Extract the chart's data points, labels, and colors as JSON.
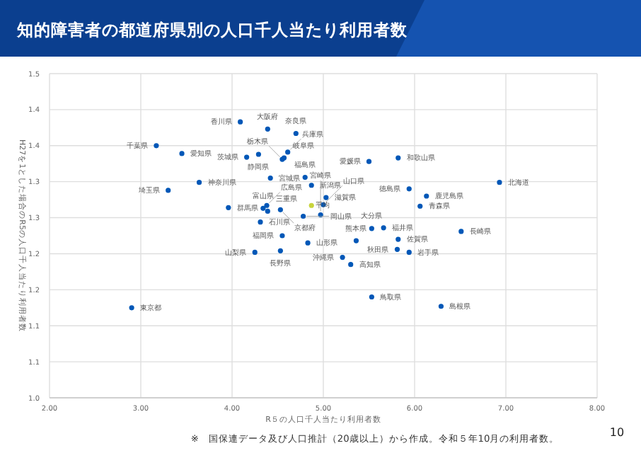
{
  "chart_data": {
    "type": "scatter",
    "title": "知的障害者の都道府県別の人口千人当たり利用者数",
    "xlabel": "R５の人口千人当たり利用者数",
    "ylabel": "H27を1とした場合のR5の人口千人当たり利用者数",
    "xlim": [
      2,
      8
    ],
    "xticks": [
      {
        "value": 2,
        "label": "2.00"
      },
      {
        "value": 3,
        "label": "3.00"
      },
      {
        "value": 4,
        "label": "4.00"
      },
      {
        "value": 5,
        "label": "5.00"
      },
      {
        "value": 6,
        "label": "6.00"
      },
      {
        "value": 7,
        "label": "7.00"
      },
      {
        "value": 8,
        "label": "8.00"
      }
    ],
    "ylim": [
      1.0,
      1.45
    ],
    "yticks": [
      {
        "value": 1.0,
        "label": "1.0"
      },
      {
        "value": 1.05,
        "label": "1.1"
      },
      {
        "value": 1.1,
        "label": "1.1"
      },
      {
        "value": 1.15,
        "label": "1.2"
      },
      {
        "value": 1.2,
        "label": "1.2"
      },
      {
        "value": 1.25,
        "label": "1.3"
      },
      {
        "value": 1.3,
        "label": "1.3"
      },
      {
        "value": 1.35,
        "label": "1.4"
      },
      {
        "value": 1.4,
        "label": "1.4"
      },
      {
        "value": 1.45,
        "label": "1.5"
      }
    ],
    "grid": true,
    "marker": "circle",
    "x": [
      6.93,
      6.06,
      5.94,
      4.42,
      5.81,
      4.83,
      4.8,
      4.16,
      4.55,
      3.96,
      3.3,
      3.17,
      2.9,
      3.64,
      4.87,
      4.34,
      4.31,
      5.66,
      4.25,
      4.53,
      4.57,
      4.29,
      3.45,
      4.39,
      5.03,
      4.53,
      4.39,
      4.61,
      4.7,
      5.82,
      5.53,
      6.29,
      4.78,
      4.38,
      5.0,
      5.94,
      4.09,
      5.5,
      5.3,
      4.55,
      5.82,
      6.51,
      5.36,
      5.53,
      4.97,
      6.13,
      5.21,
      4.87
    ],
    "values": [
      1.299,
      1.266,
      1.202,
      1.305,
      1.206,
      1.215,
      1.306,
      1.334,
      1.331,
      1.264,
      1.288,
      1.35,
      1.125,
      1.299,
      1.295,
      1.263,
      1.244,
      1.236,
      1.202,
      1.204,
      1.333,
      1.338,
      1.339,
      1.259,
      1.278,
      1.261,
      1.373,
      1.341,
      1.367,
      1.333,
      1.14,
      1.127,
      1.252,
      1.267,
      1.268,
      1.29,
      1.383,
      1.328,
      1.185,
      1.225,
      1.22,
      1.231,
      1.218,
      1.235,
      1.254,
      1.28,
      1.195,
      1.267
    ],
    "colors": [
      "#0057b7",
      "#0057b7",
      "#0057b7",
      "#0057b7",
      "#0057b7",
      "#0057b7",
      "#0057b7",
      "#0057b7",
      "#0057b7",
      "#0057b7",
      "#0057b7",
      "#0057b7",
      "#0057b7",
      "#0057b7",
      "#0057b7",
      "#0057b7",
      "#0057b7",
      "#0057b7",
      "#0057b7",
      "#0057b7",
      "#0057b7",
      "#0057b7",
      "#0057b7",
      "#0057b7",
      "#0057b7",
      "#0057b7",
      "#0057b7",
      "#0057b7",
      "#0057b7",
      "#0057b7",
      "#0057b7",
      "#0057b7",
      "#0057b7",
      "#0057b7",
      "#0057b7",
      "#0057b7",
      "#0057b7",
      "#0057b7",
      "#0057b7",
      "#0057b7",
      "#0057b7",
      "#0057b7",
      "#0057b7",
      "#0057b7",
      "#0057b7",
      "#0057b7",
      "#0057b7",
      "#c8d43c"
    ],
    "annotations": [
      {
        "text": "北海道",
        "x": 6.93,
        "y": 1.299
      },
      {
        "text": "青森県",
        "x": 6.06,
        "y": 1.266
      },
      {
        "text": "岩手県",
        "x": 5.94,
        "y": 1.202
      },
      {
        "text": "宮城県",
        "x": 4.42,
        "y": 1.305
      },
      {
        "text": "秋田県",
        "x": 5.81,
        "y": 1.206
      },
      {
        "text": "山形県",
        "x": 4.83,
        "y": 1.215
      },
      {
        "text": "福島県",
        "x": 4.8,
        "y": 1.306
      },
      {
        "text": "茨城県",
        "x": 4.16,
        "y": 1.334
      },
      {
        "text": "栃木県",
        "x": 4.55,
        "y": 1.331
      },
      {
        "text": "群馬県",
        "x": 3.96,
        "y": 1.264
      },
      {
        "text": "埼玉県",
        "x": 3.3,
        "y": 1.288
      },
      {
        "text": "千葉県",
        "x": 3.17,
        "y": 1.35
      },
      {
        "text": "東京都",
        "x": 2.9,
        "y": 1.125
      },
      {
        "text": "神奈川県",
        "x": 3.64,
        "y": 1.299
      },
      {
        "text": "新潟県",
        "x": 4.87,
        "y": 1.295
      },
      {
        "text": "富山県",
        "x": 4.34,
        "y": 1.263
      },
      {
        "text": "石川県",
        "x": 4.31,
        "y": 1.244
      },
      {
        "text": "福井県",
        "x": 5.66,
        "y": 1.236
      },
      {
        "text": "山梨県",
        "x": 4.25,
        "y": 1.202
      },
      {
        "text": "長野県",
        "x": 4.53,
        "y": 1.204
      },
      {
        "text": "岐阜県",
        "x": 4.57,
        "y": 1.333
      },
      {
        "text": "静岡県",
        "x": 4.29,
        "y": 1.338
      },
      {
        "text": "愛知県",
        "x": 3.45,
        "y": 1.339
      },
      {
        "text": "三重県",
        "x": 4.39,
        "y": 1.259
      },
      {
        "text": "滋賀県",
        "x": 5.03,
        "y": 1.278
      },
      {
        "text": "京都府",
        "x": 4.53,
        "y": 1.261
      },
      {
        "text": "大阪府",
        "x": 4.39,
        "y": 1.373
      },
      {
        "text": "兵庫県",
        "x": 4.61,
        "y": 1.341
      },
      {
        "text": "奈良県",
        "x": 4.7,
        "y": 1.367
      },
      {
        "text": "和歌山県",
        "x": 5.82,
        "y": 1.333
      },
      {
        "text": "鳥取県",
        "x": 5.53,
        "y": 1.14
      },
      {
        "text": "島根県",
        "x": 6.29,
        "y": 1.127
      },
      {
        "text": "岡山県",
        "x": 4.78,
        "y": 1.252
      },
      {
        "text": "広島県",
        "x": 4.38,
        "y": 1.267
      },
      {
        "text": "山口県",
        "x": 5.0,
        "y": 1.268
      },
      {
        "text": "徳島県",
        "x": 5.94,
        "y": 1.29
      },
      {
        "text": "香川県",
        "x": 4.09,
        "y": 1.383
      },
      {
        "text": "愛媛県",
        "x": 5.5,
        "y": 1.328
      },
      {
        "text": "高知県",
        "x": 5.3,
        "y": 1.185
      },
      {
        "text": "福岡県",
        "x": 4.55,
        "y": 1.225
      },
      {
        "text": "佐賀県",
        "x": 5.82,
        "y": 1.22
      },
      {
        "text": "長崎県",
        "x": 6.51,
        "y": 1.231
      },
      {
        "text": "熊本県",
        "x": 5.36,
        "y": 1.218
      },
      {
        "text": "大分県",
        "x": 5.53,
        "y": 1.235
      },
      {
        "text": "宮崎県",
        "x": 4.97,
        "y": 1.254
      },
      {
        "text": "鹿児島県",
        "x": 6.13,
        "y": 1.28
      },
      {
        "text": "沖縄県",
        "x": 5.21,
        "y": 1.195
      },
      {
        "text": "平均",
        "x": 4.87,
        "y": 1.267
      },
      "※　国保連データ及び人口推計（20歳以上）から作成。令和５年10月の利用者数。",
      "10"
    ]
  }
}
